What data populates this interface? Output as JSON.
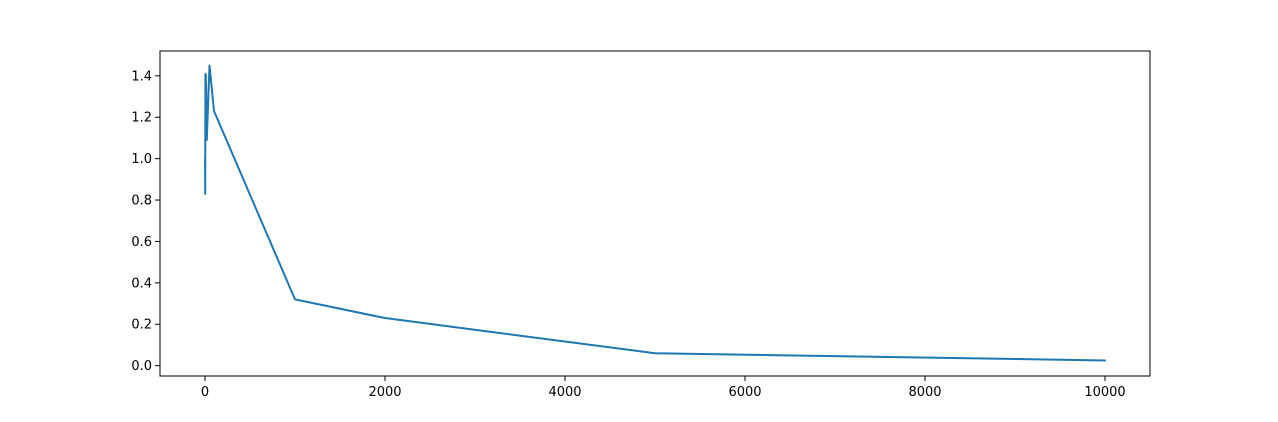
{
  "chart_data": {
    "type": "line",
    "title": "",
    "xlabel": "",
    "ylabel": "",
    "xlim": [
      -500,
      10500
    ],
    "ylim": [
      -0.05,
      1.52
    ],
    "x_ticks": [
      0,
      2000,
      4000,
      6000,
      8000,
      10000
    ],
    "x_tick_labels": [
      "0",
      "2000",
      "4000",
      "6000",
      "8000",
      "10000"
    ],
    "y_ticks": [
      0.0,
      0.2,
      0.4,
      0.6,
      0.8,
      1.0,
      1.2,
      1.4
    ],
    "y_tick_labels": [
      "0.0",
      "0.2",
      "0.4",
      "0.6",
      "0.8",
      "1.0",
      "1.2",
      "1.4"
    ],
    "grid": false,
    "legend": "none",
    "series": [
      {
        "color": "#1f77b4",
        "x": [
          1,
          2,
          5,
          10,
          20,
          50,
          100,
          1000,
          2000,
          5000,
          10000
        ],
        "y": [
          1.0,
          0.83,
          1.41,
          1.4,
          1.09,
          1.45,
          1.23,
          0.32,
          0.23,
          0.06,
          0.025
        ]
      }
    ]
  }
}
